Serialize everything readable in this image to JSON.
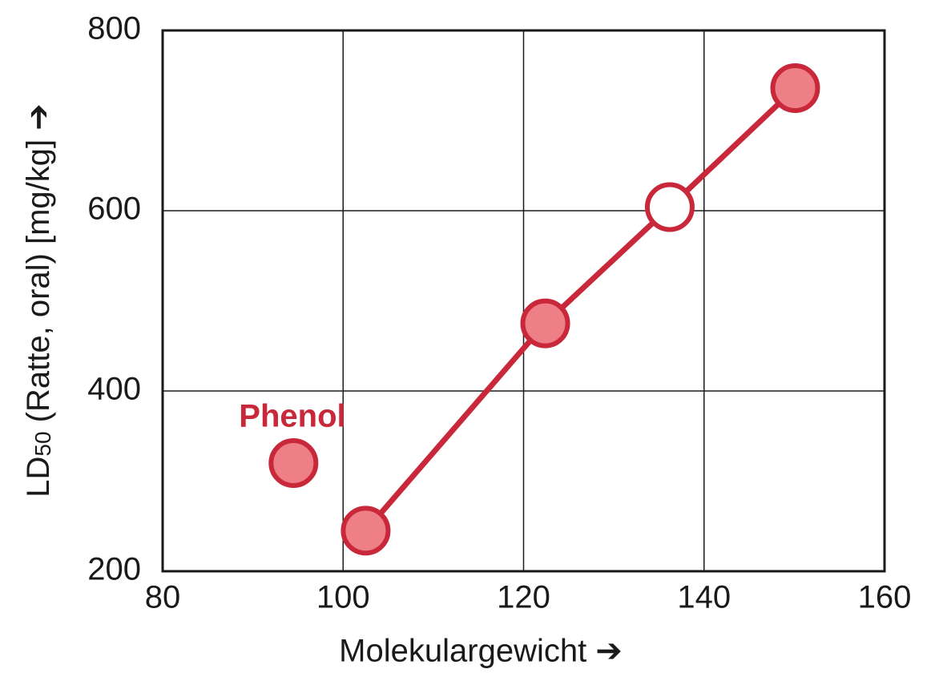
{
  "chart_data": {
    "type": "scatter",
    "xlabel": "Molekulargewicht ➔",
    "ylabel": {
      "main": "LD",
      "sub": "50",
      "rest": " (Ratte, oral) [mg/kg] ➔"
    },
    "xlim": [
      80,
      160
    ],
    "xticks": [
      80,
      100,
      120,
      140,
      160
    ],
    "ylim": [
      200,
      800
    ],
    "yticks": [
      200,
      400,
      600,
      800
    ],
    "grid": true,
    "series": [
      {
        "color": "#c8283a",
        "line": true,
        "x": [
          102.5,
          122.4,
          136.2,
          150.1
        ],
        "values": [
          245,
          475,
          604,
          736
        ],
        "marker_fills": [
          "#ef7f86",
          "#ef7f86",
          "#ffffff",
          "#ef7f86"
        ]
      },
      {
        "name": "Phenol",
        "color": "#c8283a",
        "line": false,
        "x": [
          94.5
        ],
        "values": [
          320
        ],
        "marker_fills": [
          "#ef7f86"
        ]
      }
    ]
  }
}
